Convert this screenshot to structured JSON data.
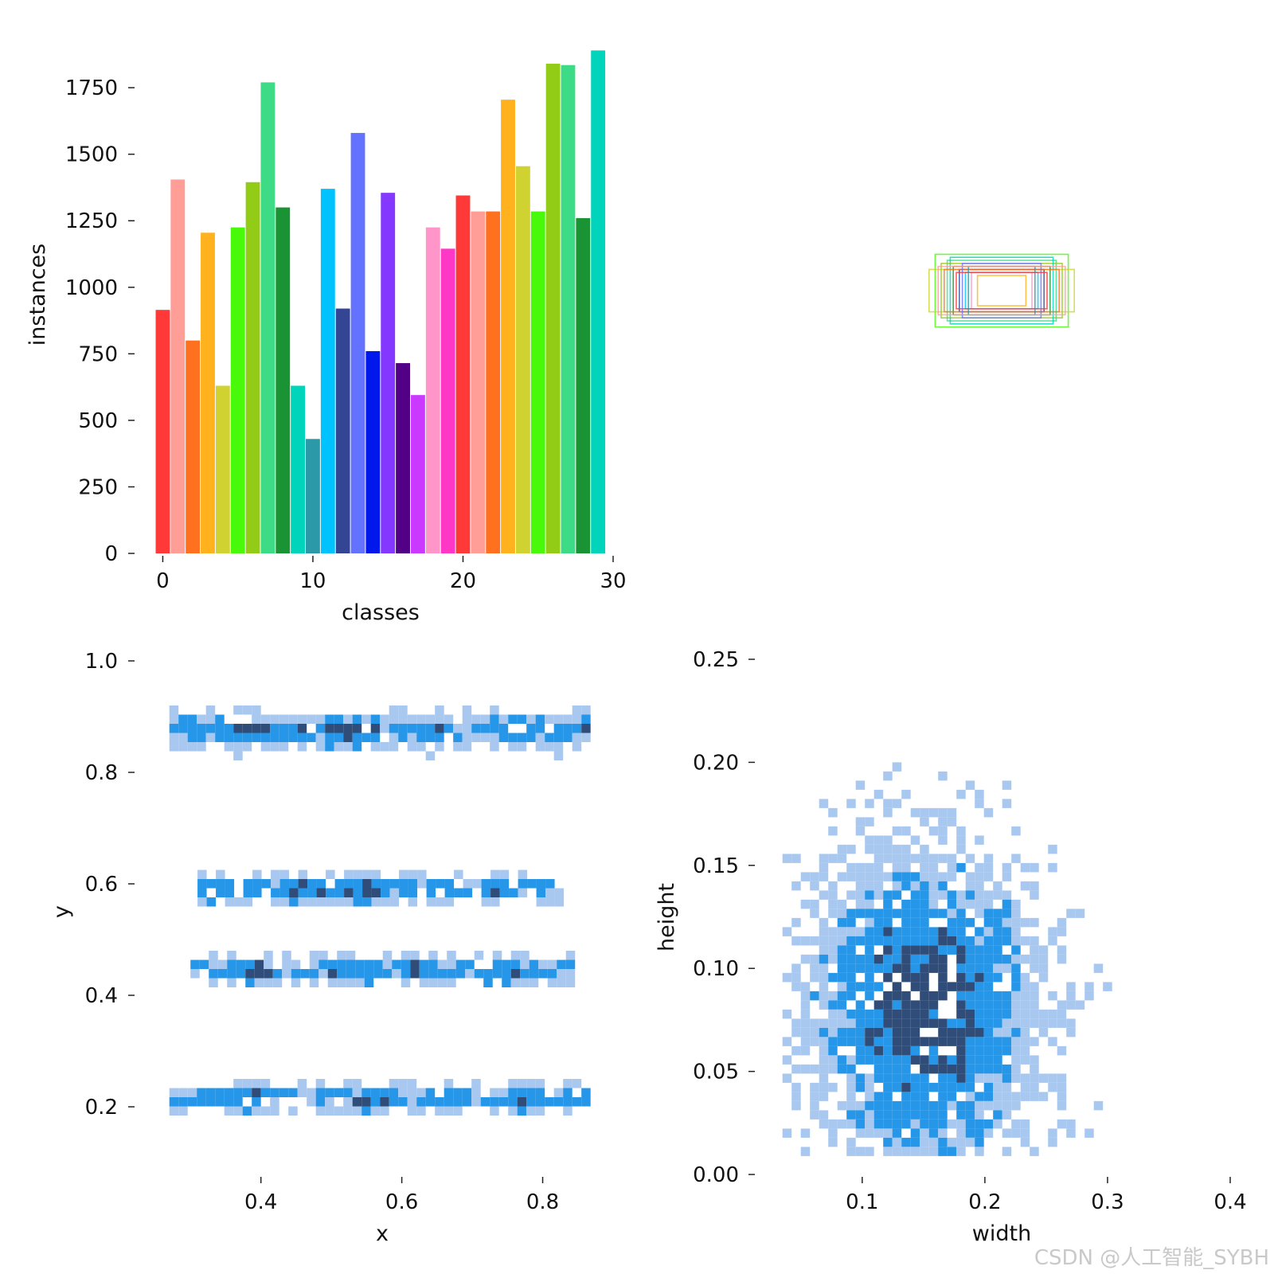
{
  "chart_data": [
    {
      "id": "classes",
      "type": "bar",
      "xlabel": "classes",
      "ylabel": "instances",
      "xlim": [
        -0.5,
        30
      ],
      "ylim": [
        0,
        1900
      ],
      "xticks": [
        "0",
        "10",
        "20",
        "30"
      ],
      "yticks": [
        "0",
        "250",
        "500",
        "750",
        "1000",
        "1250",
        "1500",
        "1750"
      ],
      "categories": [
        "0",
        "1",
        "2",
        "3",
        "4",
        "5",
        "6",
        "7",
        "8",
        "9",
        "10",
        "11",
        "12",
        "13",
        "14",
        "15",
        "16",
        "17",
        "18",
        "19",
        "20",
        "21",
        "22",
        "23",
        "24",
        "25",
        "26",
        "27",
        "28",
        "29"
      ],
      "values": [
        915,
        1405,
        800,
        1205,
        630,
        1225,
        1395,
        1770,
        1300,
        630,
        430,
        1370,
        920,
        1580,
        760,
        1355,
        715,
        595,
        1225,
        1145,
        1345,
        1285,
        1285,
        1705,
        1455,
        1285,
        1840,
        1835,
        1260,
        1890
      ],
      "colors": [
        "#ff3838",
        "#ff9d97",
        "#ff701f",
        "#ffb21d",
        "#cfd231",
        "#48f90a",
        "#92cc17",
        "#3ddb86",
        "#1a9334",
        "#00d4bb",
        "#2c99a8",
        "#00c2ff",
        "#344593",
        "#6473ff",
        "#0018ec",
        "#8438ff",
        "#520085",
        "#cb38ff",
        "#ff95c8",
        "#ff37c7",
        "#ff3838",
        "#ff9d97",
        "#ff701f",
        "#ffb21d",
        "#cfd231",
        "#48f90a",
        "#92cc17",
        "#3ddb86",
        "#1a9334",
        "#00d4bb"
      ]
    },
    {
      "id": "boxes",
      "type": "scatter",
      "description_type": "overlaid label boxes",
      "boxes": [
        {
          "w": 0.22,
          "h": 0.12,
          "color": "#48f90a"
        },
        {
          "w": 0.24,
          "h": 0.07,
          "color": "#cfd231"
        },
        {
          "w": 0.18,
          "h": 0.1,
          "color": "#3ddb86"
        },
        {
          "w": 0.16,
          "h": 0.08,
          "color": "#1a9334"
        },
        {
          "w": 0.14,
          "h": 0.07,
          "color": "#344593"
        },
        {
          "w": 0.12,
          "h": 0.06,
          "color": "#00c2ff"
        },
        {
          "w": 0.1,
          "h": 0.06,
          "color": "#ff95c8"
        },
        {
          "w": 0.08,
          "h": 0.05,
          "color": "#ffb21d"
        },
        {
          "w": 0.2,
          "h": 0.09,
          "color": "#92cc17"
        },
        {
          "w": 0.17,
          "h": 0.11,
          "color": "#00d4bb"
        },
        {
          "w": 0.19,
          "h": 0.07,
          "color": "#ff701f"
        },
        {
          "w": 0.13,
          "h": 0.09,
          "color": "#6473ff"
        },
        {
          "w": 0.15,
          "h": 0.06,
          "color": "#ff3838"
        },
        {
          "w": 0.11,
          "h": 0.08,
          "color": "#2c99a8"
        },
        {
          "w": 0.21,
          "h": 0.08,
          "color": "#ff9d97"
        }
      ]
    },
    {
      "id": "xy",
      "type": "heatmap",
      "xlabel": "x",
      "ylabel": "y",
      "xlim": [
        0.25,
        0.9
      ],
      "ylim": [
        0.1,
        1.0
      ],
      "xticks": [
        "0.4",
        "0.6",
        "0.8"
      ],
      "yticks": [
        "0.2",
        "0.4",
        "0.6",
        "0.8",
        "1.0"
      ],
      "cmap": [
        "#a8c8f0",
        "#2596e8",
        "#2f4d78"
      ],
      "bands": [
        {
          "y": 0.875,
          "spread": 0.045,
          "xmin": 0.27,
          "xmax": 0.86,
          "peaks": [
            0.38,
            0.52,
            0.76
          ]
        },
        {
          "y": 0.59,
          "spread": 0.035,
          "xmin": 0.31,
          "xmax": 0.82,
          "peaks": [
            0.36,
            0.46,
            0.55,
            0.74
          ]
        },
        {
          "y": 0.445,
          "spread": 0.035,
          "xmin": 0.3,
          "xmax": 0.84,
          "peaks": [
            0.4,
            0.53,
            0.62,
            0.75
          ]
        },
        {
          "y": 0.215,
          "spread": 0.035,
          "xmin": 0.27,
          "xmax": 0.86,
          "peaks": [
            0.38,
            0.56,
            0.78
          ]
        }
      ]
    },
    {
      "id": "wh",
      "type": "heatmap",
      "xlabel": "width",
      "ylabel": "height",
      "xlim": [
        0.03,
        0.4
      ],
      "ylim": [
        0.0,
        0.25
      ],
      "xticks": [
        "0.1",
        "0.2",
        "0.3",
        "0.4"
      ],
      "yticks": [
        "0.00",
        "0.05",
        "0.10",
        "0.15",
        "0.20",
        "0.25"
      ],
      "cmap": [
        "#a8c8f0",
        "#2596e8",
        "#2f4d78"
      ],
      "center": {
        "x": 0.15,
        "y": 0.08
      }
    }
  ],
  "watermark": "CSDN @人工智能_SYBH"
}
